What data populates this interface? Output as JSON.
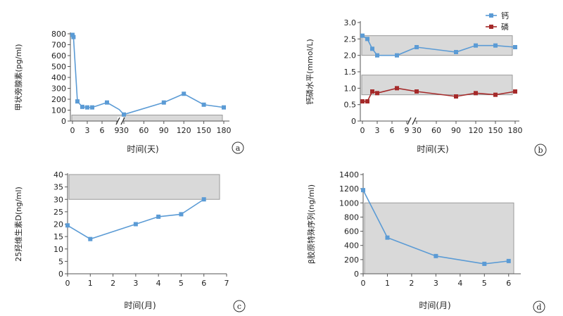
{
  "chart_data": [
    {
      "id": "a",
      "type": "line",
      "panel_label": "a",
      "xlabel": "时间(天)",
      "ylabel": "甲状旁腺素(pg/ml)",
      "ylim": [
        0,
        800
      ],
      "yticks": [
        0,
        100,
        200,
        300,
        400,
        500,
        600,
        700,
        800
      ],
      "x_segments": [
        {
          "range": [
            0,
            9
          ],
          "ticks": [
            0,
            3,
            6,
            9
          ]
        },
        {
          "range": [
            30,
            180
          ],
          "ticks": [
            30,
            60,
            90,
            120,
            150,
            180
          ]
        }
      ],
      "x_ticks_display": [
        "0",
        "3",
        "6",
        "9",
        "30",
        "60",
        "90",
        "120",
        "150",
        "180"
      ],
      "reference_band": [
        0,
        55
      ],
      "series": [
        {
          "color": "#5b9bd5",
          "marker": "square",
          "points": [
            [
              0,
              790
            ],
            [
              0.2,
              770
            ],
            [
              1,
              180
            ],
            [
              2,
              130
            ],
            [
              3,
              125
            ],
            [
              4,
              125
            ],
            [
              7,
              170
            ],
            [
              9.5,
              105
            ],
            [
              30,
              60
            ],
            [
              90,
              170
            ],
            [
              120,
              250
            ],
            [
              150,
              150
            ],
            [
              180,
              125
            ]
          ]
        }
      ],
      "grid": false
    },
    {
      "id": "b",
      "type": "line",
      "panel_label": "b",
      "xlabel": "时间(天)",
      "ylabel": "钙磷水平(mmol/L)",
      "ylim": [
        0,
        3.0
      ],
      "yticks": [
        0,
        0.5,
        1.0,
        1.5,
        2.0,
        2.5,
        3.0
      ],
      "ytick_labels": [
        "0",
        "0.5",
        "1.0",
        "1.5",
        "2.0",
        "2.5",
        "3.0"
      ],
      "x_segments": [
        {
          "range": [
            0,
            9
          ],
          "ticks": [
            0,
            3,
            6,
            9
          ]
        },
        {
          "range": [
            30,
            180
          ],
          "ticks": [
            30,
            60,
            90,
            120,
            150,
            180
          ]
        }
      ],
      "x_ticks_display": [
        "0",
        "3",
        "6",
        "9",
        "30",
        "60",
        "90",
        "120",
        "150",
        "180"
      ],
      "reference_bands": [
        [
          2.0,
          2.6
        ],
        [
          0.8,
          1.4
        ]
      ],
      "legend": {
        "position": "top-right",
        "entries": [
          "钙",
          "磷"
        ]
      },
      "series": [
        {
          "name": "钙",
          "color": "#5b9bd5",
          "marker": "square",
          "points": [
            [
              0,
              2.6
            ],
            [
              1,
              2.5
            ],
            [
              2,
              2.2
            ],
            [
              3,
              2.0
            ],
            [
              7,
              2.0
            ],
            [
              30,
              2.25
            ],
            [
              90,
              2.1
            ],
            [
              120,
              2.3
            ],
            [
              150,
              2.3
            ],
            [
              180,
              2.25
            ]
          ]
        },
        {
          "name": "磷",
          "color": "#a52a2a",
          "marker": "square",
          "points": [
            [
              0,
              0.6
            ],
            [
              1,
              0.6
            ],
            [
              2,
              0.9
            ],
            [
              3,
              0.85
            ],
            [
              7,
              1.0
            ],
            [
              30,
              0.9
            ],
            [
              90,
              0.75
            ],
            [
              120,
              0.85
            ],
            [
              150,
              0.8
            ],
            [
              180,
              0.9
            ]
          ]
        }
      ],
      "grid": false
    },
    {
      "id": "c",
      "type": "line",
      "panel_label": "c",
      "xlabel": "时间(月)",
      "ylabel": "25羟维生素D(ng/ml)",
      "xlim": [
        0,
        7
      ],
      "xticks": [
        0,
        1,
        2,
        3,
        4,
        5,
        6,
        7
      ],
      "ylim": [
        0,
        40
      ],
      "yticks": [
        0,
        5,
        10,
        15,
        20,
        25,
        30,
        35,
        40
      ],
      "reference_band": [
        30,
        40
      ],
      "series": [
        {
          "color": "#5b9bd5",
          "marker": "square",
          "points": [
            [
              0,
              19.5
            ],
            [
              1,
              14
            ],
            [
              3,
              20
            ],
            [
              4,
              23
            ],
            [
              5,
              24
            ],
            [
              6,
              30
            ]
          ]
        }
      ],
      "grid": false
    },
    {
      "id": "d",
      "type": "line",
      "panel_label": "d",
      "xlabel": "时间(月)",
      "ylabel": "β胶原特殊序列(ng/ml)",
      "xlim": [
        0,
        6.5
      ],
      "xticks": [
        0,
        1,
        2,
        3,
        4,
        5,
        6
      ],
      "ylim": [
        0,
        1400
      ],
      "yticks": [
        0,
        200,
        400,
        600,
        800,
        1000,
        1200,
        1400
      ],
      "reference_band": [
        0,
        1000
      ],
      "series": [
        {
          "color": "#5b9bd5",
          "marker": "square",
          "points": [
            [
              0,
              1180
            ],
            [
              1,
              510
            ],
            [
              3,
              250
            ],
            [
              5,
              140
            ],
            [
              6,
              180
            ]
          ]
        }
      ],
      "grid": false
    }
  ]
}
